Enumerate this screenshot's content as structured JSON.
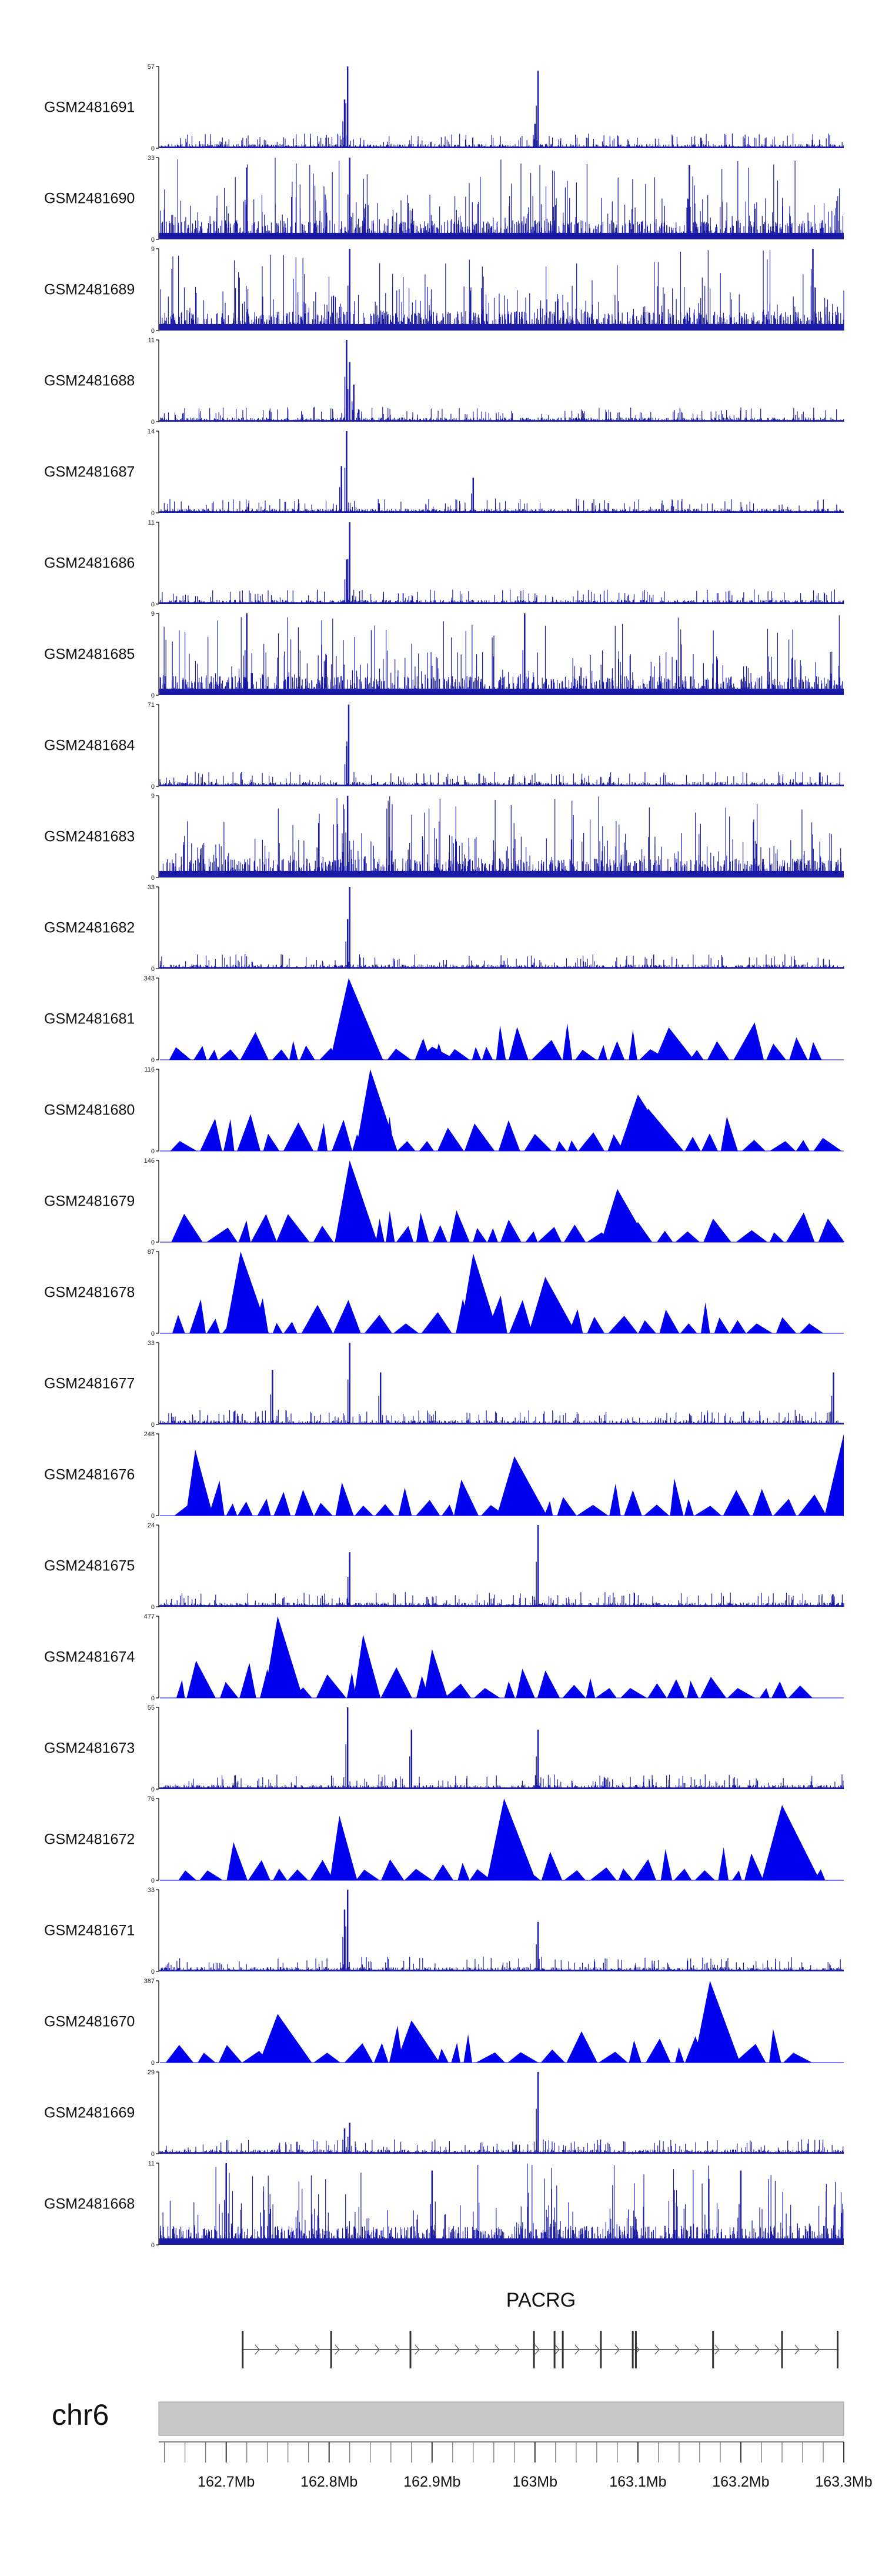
{
  "chart_data": {
    "type": "genome-browser",
    "chromosome": "chr6",
    "region_mb": [
      162.6345,
      163.3
    ],
    "tracks": [
      {
        "name": "GSM2481691",
        "ymax": "57",
        "style": "bars",
        "peaks": [
          [
            162.818,
            57
          ],
          [
            162.815,
            34
          ],
          [
            163.003,
            54
          ],
          [
            163.0,
            17
          ]
        ]
      },
      {
        "name": "GSM2481690",
        "ymax": "33",
        "style": "dense",
        "peaks": [
          [
            162.82,
            33
          ],
          [
            162.72,
            29
          ],
          [
            163.15,
            30
          ]
        ]
      },
      {
        "name": "GSM2481689",
        "ymax": "9",
        "style": "dense",
        "peaks": [
          [
            162.82,
            9
          ],
          [
            163.27,
            9
          ]
        ]
      },
      {
        "name": "GSM2481688",
        "ymax": "11",
        "style": "bars",
        "peaks": [
          [
            162.817,
            11
          ],
          [
            162.82,
            8
          ],
          [
            162.824,
            5
          ]
        ]
      },
      {
        "name": "GSM2481687",
        "ymax": "14",
        "style": "bars",
        "peaks": [
          [
            162.817,
            14
          ],
          [
            162.812,
            8
          ],
          [
            162.94,
            6
          ]
        ]
      },
      {
        "name": "GSM2481686",
        "ymax": "11",
        "style": "bars",
        "peaks": [
          [
            162.82,
            11
          ],
          [
            162.817,
            6
          ]
        ]
      },
      {
        "name": "GSM2481685",
        "ymax": "9",
        "style": "dense",
        "peaks": [
          [
            162.72,
            9
          ],
          [
            162.99,
            9
          ]
        ]
      },
      {
        "name": "GSM2481684",
        "ymax": "71",
        "style": "bars",
        "peaks": [
          [
            162.819,
            71
          ],
          [
            162.817,
            35
          ],
          [
            163.004,
            4
          ]
        ]
      },
      {
        "name": "GSM2481683",
        "ymax": "9",
        "style": "dense",
        "peaks": [
          [
            162.818,
            9
          ],
          [
            162.79,
            6
          ]
        ]
      },
      {
        "name": "GSM2481682",
        "ymax": "33",
        "style": "bars",
        "peaks": [
          [
            162.82,
            33
          ],
          [
            162.818,
            20
          ]
        ]
      },
      {
        "name": "GSM2481681",
        "ymax": "343",
        "style": "triangles",
        "peaks": [
          [
            162.819,
            343
          ],
          [
            163.13,
            136
          ],
          [
            162.9,
            55
          ]
        ]
      },
      {
        "name": "GSM2481680",
        "ymax": "116",
        "style": "triangles",
        "peaks": [
          [
            162.84,
            116
          ],
          [
            163.1,
            80
          ],
          [
            163.11,
            60
          ]
        ]
      },
      {
        "name": "GSM2481679",
        "ymax": "146",
        "style": "triangles",
        "peaks": [
          [
            162.82,
            146
          ],
          [
            163.08,
            95
          ],
          [
            162.76,
            50
          ]
        ]
      },
      {
        "name": "GSM2481678",
        "ymax": "87",
        "style": "triangles",
        "peaks": [
          [
            162.714,
            87
          ],
          [
            162.94,
            85
          ],
          [
            163.01,
            60
          ]
        ]
      },
      {
        "name": "GSM2481677",
        "ymax": "33",
        "style": "bars",
        "peaks": [
          [
            162.82,
            33
          ],
          [
            162.85,
            21
          ],
          [
            163.29,
            21
          ],
          [
            162.745,
            22
          ]
        ]
      },
      {
        "name": "GSM2481676",
        "ymax": "248",
        "style": "triangles",
        "peaks": [
          [
            163.3,
            248
          ],
          [
            162.67,
            200
          ],
          [
            162.98,
            180
          ]
        ]
      },
      {
        "name": "GSM2481675",
        "ymax": "24",
        "style": "bars",
        "peaks": [
          [
            163.003,
            24
          ],
          [
            162.82,
            16
          ],
          [
            162.82,
            14
          ]
        ]
      },
      {
        "name": "GSM2481674",
        "ymax": "477",
        "style": "triangles",
        "peaks": [
          [
            162.75,
            477
          ],
          [
            162.833,
            370
          ],
          [
            162.9,
            285
          ]
        ]
      },
      {
        "name": "GSM2481673",
        "ymax": "55",
        "style": "bars",
        "peaks": [
          [
            162.818,
            55
          ],
          [
            162.88,
            40
          ],
          [
            163.003,
            40
          ]
        ]
      },
      {
        "name": "GSM2481672",
        "ymax": "76",
        "style": "triangles",
        "peaks": [
          [
            162.97,
            76
          ],
          [
            163.24,
            70
          ],
          [
            162.81,
            60
          ]
        ]
      },
      {
        "name": "GSM2481671",
        "ymax": "33",
        "style": "bars",
        "peaks": [
          [
            162.818,
            33
          ],
          [
            163.003,
            20
          ],
          [
            162.815,
            25
          ]
        ]
      },
      {
        "name": "GSM2481670",
        "ymax": "387",
        "style": "triangles",
        "peaks": [
          [
            163.17,
            387
          ],
          [
            162.75,
            230
          ],
          [
            162.88,
            200
          ]
        ]
      },
      {
        "name": "GSM2481669",
        "ymax": "29",
        "style": "bars",
        "peaks": [
          [
            163.003,
            29
          ],
          [
            162.82,
            11
          ],
          [
            162.815,
            9
          ]
        ]
      },
      {
        "name": "GSM2481668",
        "ymax": "11",
        "style": "dense",
        "peaks": [
          [
            162.7,
            11
          ],
          [
            162.9,
            10
          ],
          [
            163.2,
            10
          ]
        ]
      }
    ],
    "gene": {
      "name": "PACRG",
      "strand": "+",
      "start_mb": 162.715,
      "end_mb": 163.295,
      "exons_mb": [
        162.716,
        162.802,
        162.879,
        162.999,
        163.019,
        163.027,
        163.064,
        163.095,
        163.098,
        163.173,
        163.24,
        163.294
      ]
    },
    "axis": {
      "tick_labels": [
        "162.7Mb",
        "162.8Mb",
        "162.9Mb",
        "163Mb",
        "163.1Mb",
        "163.2Mb",
        "163.3Mb"
      ],
      "tick_values": [
        162.7,
        162.8,
        162.9,
        163.0,
        163.1,
        163.2,
        163.3
      ],
      "minor_step": 0.02,
      "y_min": "0"
    },
    "colors": {
      "signal": "#1a1aa6",
      "triangle": "#0000ee",
      "gene": "#333333",
      "ideogram": "#c8c8c8"
    }
  }
}
